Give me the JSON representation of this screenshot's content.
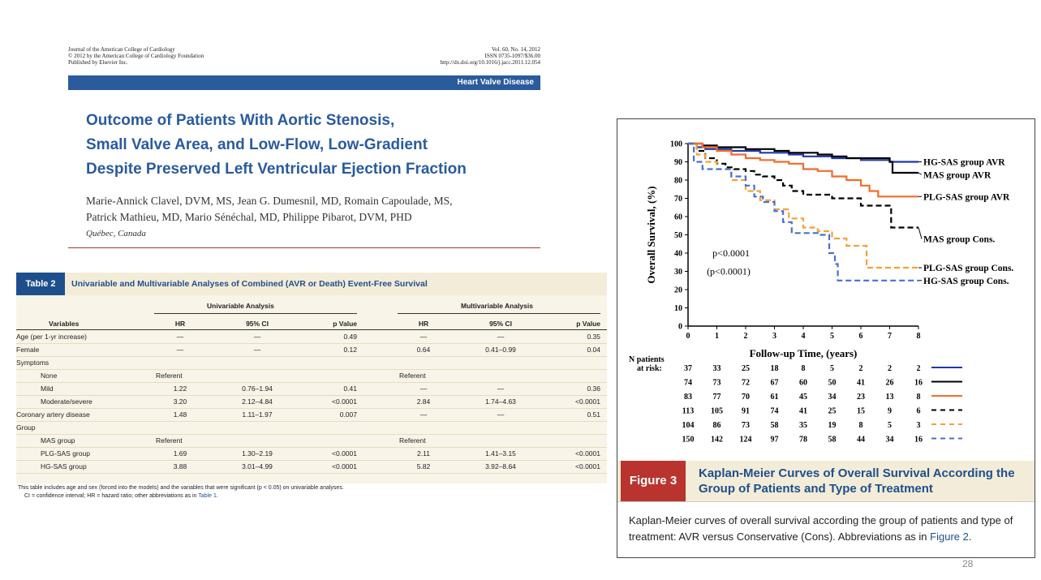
{
  "article": {
    "journal_left": [
      "Journal of the American College of Cardiology",
      "© 2012 by the American College of Cardiology Foundation",
      "Published by Elsevier Inc."
    ],
    "journal_right": [
      "Vol. 60, No. 14, 2012",
      "ISSN 0735-1097/$36.00",
      "http://dx.doi.org/10.1016/j.jacc.2011.12.054"
    ],
    "section": "Heart Valve Disease",
    "title_lines": [
      "Outcome of Patients With Aortic Stenosis,",
      "Small Valve Area, and Low-Flow, Low-Gradient",
      "Despite Preserved Left Ventricular Ejection Fraction"
    ],
    "authors_lines": [
      "Marie-Annick Clavel, DVM, MS, Jean G. Dumesnil, MD, Romain Capoulade, MS,",
      "Patrick Mathieu, MD, Mario Sénéchal, MD, Philippe Pibarot, DVM, PHD"
    ],
    "location": "Québec, Canada"
  },
  "table2": {
    "number": "Table 2",
    "title": "Univariable and Multivariable Analyses of Combined (AVR or Death) Event-Free Survival",
    "group_headers": [
      "Univariable Analysis",
      "Multivariable Analysis"
    ],
    "columns": [
      "Variables",
      "HR",
      "95% CI",
      "p Value",
      "HR",
      "95% CI",
      "p Value"
    ],
    "rows": [
      {
        "label": "Age (per 1-yr increase)",
        "indent": 0,
        "cells": [
          "—",
          "—",
          "0.49",
          "—",
          "—",
          "0.35"
        ]
      },
      {
        "label": "Female",
        "indent": 0,
        "cells": [
          "—",
          "—",
          "0.12",
          "0.64",
          "0.41–0.99",
          "0.04"
        ]
      },
      {
        "label": "Symptoms",
        "indent": 0,
        "cells": [
          "",
          "",
          "",
          "",
          "",
          ""
        ]
      },
      {
        "label": "None",
        "indent": 1,
        "cells": [
          "Referent",
          "",
          "",
          "Referent",
          "",
          ""
        ]
      },
      {
        "label": "Mild",
        "indent": 1,
        "cells": [
          "1.22",
          "0.76–1.94",
          "0.41",
          "—",
          "—",
          "0.36"
        ]
      },
      {
        "label": "Moderate/severe",
        "indent": 1,
        "cells": [
          "3.20",
          "2.12–4.84",
          "<0.0001",
          "2.84",
          "1.74–4.63",
          "<0.0001"
        ]
      },
      {
        "label": "Coronary artery disease",
        "indent": 0,
        "cells": [
          "1.48",
          "1.11–1.97",
          "0.007",
          "—",
          "—",
          "0.51"
        ]
      },
      {
        "label": "Group",
        "indent": 0,
        "cells": [
          "",
          "",
          "",
          "",
          "",
          ""
        ]
      },
      {
        "label": "MAS group",
        "indent": 1,
        "cells": [
          "Referent",
          "",
          "",
          "Referent",
          "",
          ""
        ]
      },
      {
        "label": "PLG-SAS group",
        "indent": 1,
        "cells": [
          "1.69",
          "1.30–2.19",
          "<0.0001",
          "2.11",
          "1.41–3.15",
          "<0.0001"
        ]
      },
      {
        "label": "HG-SAS group",
        "indent": 1,
        "cells": [
          "3.88",
          "3.01–4.99",
          "<0.0001",
          "5.82",
          "3.92–8.64",
          "<0.0001"
        ]
      }
    ],
    "footnote": "This table includes age and sex (forced into the models) and the variables that were significant (p < 0.05) on univariable analyses.",
    "footnote2_prefix": "CI = confidence interval; HR = hazard ratio; other abbreviations as in ",
    "footnote2_link": "Table 1",
    "footnote2_suffix": "."
  },
  "figure3": {
    "label": "Figure 3",
    "title": "Kaplan-Meier Curves of Overall Survival According the Group of Patients and Type of Treatment",
    "caption_prefix": "Kaplan-Meier curves of overall survival according the group of patients and type of treatment: AVR versus Conservative (Cons). Abbreviations as in ",
    "caption_link": "Figure 2",
    "caption_suffix": "."
  },
  "chart_data": {
    "type": "line",
    "xlabel": "Follow-up Time, (years)",
    "ylabel": "Overall Survival, (%)",
    "xlim": [
      0,
      8
    ],
    "ylim": [
      0,
      100
    ],
    "xticks": [
      0,
      1,
      2,
      3,
      4,
      5,
      6,
      7,
      8
    ],
    "yticks": [
      0,
      10,
      20,
      30,
      40,
      50,
      60,
      70,
      80,
      90,
      100
    ],
    "grid": false,
    "annotations": [
      "p<0.0001",
      "(p<0.0001)"
    ],
    "risk_table_label": [
      "N patients",
      "at risk:"
    ],
    "series": [
      {
        "name": "HG-SAS group AVR",
        "color": "#1f3aa8",
        "dash": "solid",
        "x": [
          0,
          0.3,
          0.6,
          1,
          1.5,
          2,
          2.5,
          3,
          3.5,
          4,
          4.5,
          5,
          5.5,
          6,
          6.5,
          7,
          8
        ],
        "y": [
          100,
          98,
          97,
          97,
          96,
          96,
          95,
          95,
          94,
          93,
          93,
          92,
          92,
          91,
          91,
          90,
          90
        ],
        "at_risk": [
          37,
          33,
          25,
          18,
          8,
          5,
          2,
          2,
          2
        ]
      },
      {
        "name": "MAS group AVR",
        "color": "#000000",
        "dash": "solid",
        "x": [
          0,
          0.5,
          1,
          1.5,
          2,
          2.5,
          3,
          3.5,
          4,
          4.5,
          5,
          5.5,
          6,
          6.5,
          7,
          7.1,
          8
        ],
        "y": [
          100,
          99,
          98,
          98,
          97,
          97,
          96,
          95,
          95,
          94,
          93,
          92,
          92,
          92,
          90,
          84,
          84
        ],
        "at_risk": [
          74,
          73,
          72,
          67,
          60,
          50,
          41,
          26,
          16
        ]
      },
      {
        "name": "PLG-SAS group AVR",
        "color": "#f26b2a",
        "dash": "solid",
        "x": [
          0,
          0.5,
          1,
          1.5,
          2,
          2.5,
          3,
          3.5,
          4,
          4.5,
          5,
          5.5,
          6,
          6.3,
          6.6,
          7,
          8
        ],
        "y": [
          100,
          98,
          96,
          94,
          92,
          91,
          90,
          89,
          86,
          85,
          82,
          80,
          77,
          74,
          71,
          71,
          71
        ],
        "at_risk": [
          83,
          77,
          70,
          61,
          45,
          34,
          23,
          13,
          8
        ]
      },
      {
        "name": "MAS group Cons.",
        "color": "#000000",
        "dash": "dashed",
        "x": [
          0,
          0.3,
          0.6,
          1,
          1.3,
          1.6,
          2,
          2.3,
          2.6,
          3,
          3.3,
          3.6,
          4,
          4.5,
          5,
          5.5,
          6,
          6.5,
          7,
          7.05,
          8
        ],
        "y": [
          100,
          96,
          92,
          89,
          87,
          86,
          85,
          83,
          82,
          80,
          77,
          74,
          72,
          72,
          70,
          70,
          66,
          66,
          65,
          54,
          54
        ],
        "at_risk": [
          113,
          105,
          91,
          74,
          41,
          25,
          15,
          9,
          6
        ]
      },
      {
        "name": "PLG-SAS group Cons.",
        "color": "#f5a03b",
        "dash": "dashed",
        "x": [
          0,
          0.3,
          0.6,
          1,
          1.5,
          2,
          2.5,
          3,
          3.5,
          4,
          4.5,
          5,
          5.5,
          5.7,
          6,
          6.2,
          6.5,
          7,
          8
        ],
        "y": [
          100,
          94,
          90,
          86,
          80,
          74,
          69,
          64,
          59,
          54,
          52,
          48,
          44,
          44,
          44,
          32,
          32,
          32,
          32
        ],
        "at_risk": [
          104,
          86,
          73,
          58,
          35,
          19,
          8,
          5,
          3
        ]
      },
      {
        "name": "HG-SAS group Cons.",
        "color": "#4a6fd0",
        "dash": "dashed",
        "x": [
          0,
          0.2,
          0.5,
          1,
          1.2,
          1.5,
          2,
          2.3,
          2.6,
          3,
          3.3,
          3.6,
          4,
          4.5,
          4.9,
          5.1,
          5.2,
          6,
          7,
          8
        ],
        "y": [
          100,
          90,
          86,
          86,
          86,
          82,
          77,
          71,
          68,
          63,
          57,
          51,
          51,
          50,
          40,
          34,
          25,
          25,
          25,
          25
        ],
        "at_risk": [
          150,
          142,
          124,
          97,
          78,
          58,
          44,
          34,
          16
        ]
      }
    ]
  },
  "page_number": "28"
}
